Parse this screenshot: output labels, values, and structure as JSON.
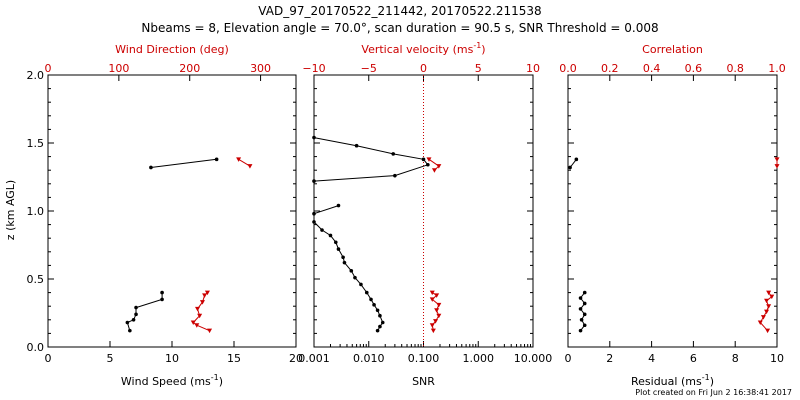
{
  "title": "VAD_97_20170522_211442, 20170522.211538",
  "subtitle": "Nbeams = 8, Elevation angle = 70.0°, scan duration = 90.5 s, SNR Threshold = 0.008",
  "footer": "Plot created on Fri Jun  2 16:38:41 2017",
  "colors": {
    "primary": "#000000",
    "secondary": "#cc0000"
  },
  "ylabel": "z (km AGL)",
  "y_ticks": [
    "0.0",
    "0.5",
    "1.0",
    "1.5",
    "2.0"
  ],
  "chart_data": [
    {
      "type": "line",
      "panel": "wind",
      "ylim": [
        0,
        2
      ],
      "xlabel": "Wind Speed (ms",
      "xlabel_sup": "-1",
      "xlabel_end": ")",
      "xlim": [
        0,
        20
      ],
      "x_ticks": [
        "0",
        "5",
        "10",
        "15",
        "20"
      ],
      "top_label": "Wind Direction (deg)",
      "top_xlim": [
        0,
        350
      ],
      "top_ticks": [
        "0",
        "100",
        "200",
        "300"
      ],
      "series": [
        {
          "role": "bottom",
          "points": [
            [
              8.3,
              1.32
            ],
            [
              13.6,
              1.38
            ],
            [
              null,
              null
            ],
            [
              6.6,
              0.12
            ],
            [
              6.4,
              0.18
            ],
            [
              6.9,
              0.2
            ],
            [
              7.1,
              0.24
            ],
            [
              7.1,
              0.29
            ],
            [
              9.2,
              0.35
            ],
            [
              9.2,
              0.4
            ]
          ]
        },
        {
          "role": "top",
          "points": [
            [
              269,
              1.38
            ],
            [
              285,
              1.33
            ],
            [
              null,
              null
            ],
            [
              228,
              0.12
            ],
            [
              210,
              0.16
            ],
            [
              205,
              0.18
            ],
            [
              214,
              0.23
            ],
            [
              211,
              0.28
            ],
            [
              218,
              0.33
            ],
            [
              221,
              0.38
            ],
            [
              225,
              0.4
            ]
          ]
        }
      ]
    },
    {
      "type": "line",
      "panel": "vv",
      "ylim": [
        0,
        2
      ],
      "xlabel": "SNR",
      "xlim_log": [
        -3,
        1
      ],
      "x_ticks": [
        "0.001",
        "0.010",
        "0.100",
        "1.000",
        "10.000"
      ],
      "top_label": "Vertical velocity (ms",
      "top_label_sup": "-1",
      "top_label_end": ")",
      "top_xlim": [
        -10,
        10
      ],
      "top_ticks": [
        "−10",
        "−5",
        "0",
        "5",
        "10"
      ],
      "series": [
        {
          "role": "bottom",
          "points": [
            [
              0.001,
              1.54
            ],
            [
              0.006,
              1.48
            ],
            [
              0.028,
              1.42
            ],
            [
              0.1,
              1.38
            ],
            [
              0.12,
              1.34
            ],
            [
              0.03,
              1.26
            ],
            [
              0.001,
              1.22
            ],
            [
              null,
              null
            ],
            [
              0.001,
              0.98
            ],
            [
              0.0028,
              1.04
            ],
            [
              null,
              null
            ],
            [
              0.001,
              0.92
            ],
            [
              0.0014,
              0.86
            ],
            [
              0.002,
              0.82
            ],
            [
              0.0025,
              0.77
            ],
            [
              0.0028,
              0.72
            ],
            [
              0.0034,
              0.66
            ],
            [
              0.0036,
              0.62
            ],
            [
              0.0048,
              0.56
            ],
            [
              0.0056,
              0.51
            ],
            [
              0.0072,
              0.46
            ],
            [
              0.0092,
              0.4
            ],
            [
              0.011,
              0.35
            ],
            [
              0.0125,
              0.31
            ],
            [
              0.0145,
              0.27
            ],
            [
              0.016,
              0.23
            ],
            [
              0.018,
              0.18
            ],
            [
              0.016,
              0.15
            ],
            [
              0.0145,
              0.12
            ]
          ]
        },
        {
          "role": "top",
          "points": [
            [
              0.5,
              1.38
            ],
            [
              1.4,
              1.33
            ],
            [
              1.0,
              1.3
            ],
            [
              null,
              null
            ],
            [
              0.9,
              0.12
            ],
            [
              0.8,
              0.16
            ],
            [
              1.1,
              0.19
            ],
            [
              1.4,
              0.23
            ],
            [
              1.2,
              0.27
            ],
            [
              1.4,
              0.31
            ],
            [
              0.8,
              0.35
            ],
            [
              1.2,
              0.38
            ],
            [
              0.8,
              0.4
            ]
          ]
        }
      ],
      "zero_line": 0
    },
    {
      "type": "line",
      "panel": "resid",
      "ylim": [
        0,
        2
      ],
      "xlabel": "Residual (ms",
      "xlabel_sup": "-1",
      "xlabel_end": ")",
      "xlim": [
        0,
        10
      ],
      "x_ticks": [
        "0",
        "2",
        "4",
        "6",
        "8",
        "10"
      ],
      "top_label": "Correlation",
      "top_xlim": [
        0,
        1
      ],
      "top_ticks": [
        "0.0",
        "0.2",
        "0.4",
        "0.6",
        "0.8",
        "1.0"
      ],
      "series": [
        {
          "role": "bottom",
          "points": [
            [
              0.1,
              1.32
            ],
            [
              0.4,
              1.38
            ],
            [
              null,
              null
            ],
            [
              0.6,
              0.12
            ],
            [
              0.8,
              0.16
            ],
            [
              0.65,
              0.2
            ],
            [
              0.8,
              0.24
            ],
            [
              0.6,
              0.28
            ],
            [
              0.8,
              0.32
            ],
            [
              0.6,
              0.36
            ],
            [
              0.8,
              0.4
            ]
          ]
        },
        {
          "role": "top",
          "points": [
            [
              1.0,
              1.33
            ],
            [
              1.0,
              1.38
            ],
            [
              null,
              null
            ],
            [
              0.955,
              0.12
            ],
            [
              0.92,
              0.18
            ],
            [
              0.935,
              0.22
            ],
            [
              0.95,
              0.26
            ],
            [
              0.96,
              0.3
            ],
            [
              0.95,
              0.34
            ],
            [
              0.975,
              0.37
            ],
            [
              0.96,
              0.4
            ]
          ]
        }
      ]
    }
  ]
}
